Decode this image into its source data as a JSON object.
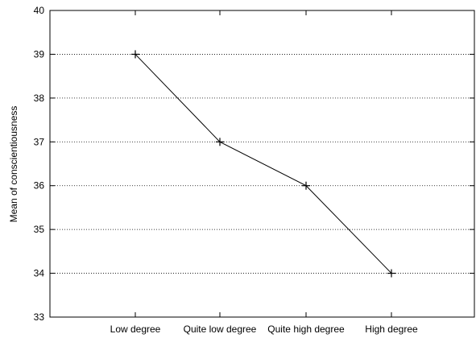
{
  "chart_data": {
    "type": "line",
    "title": "",
    "xlabel": "",
    "ylabel": "Mean of conscientiousness",
    "categories": [
      "Low degree",
      "Quite low degree",
      "Quite high degree",
      "High degree"
    ],
    "series": [
      {
        "values": [
          39,
          37,
          36,
          34
        ]
      }
    ],
    "ylim": [
      33,
      40
    ],
    "yticks": [
      33,
      34,
      35,
      36,
      37,
      38,
      39,
      40
    ],
    "grid": "horizontal dotted",
    "marker": "plus",
    "legend": "none",
    "line_color": "#000000"
  }
}
